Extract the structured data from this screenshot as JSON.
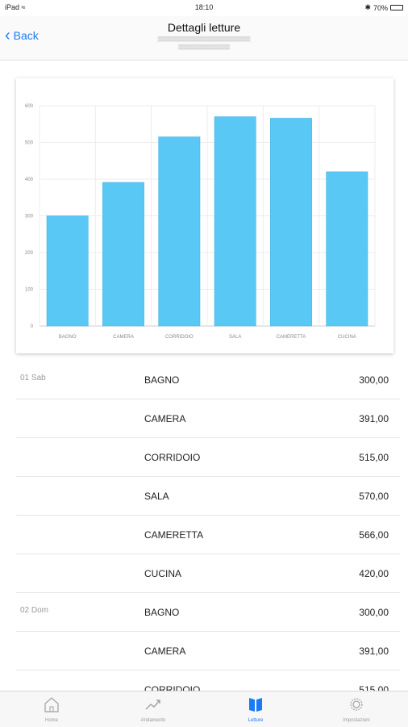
{
  "status_bar": {
    "device": "iPad",
    "time": "18:10",
    "battery": "70%",
    "battery_level": 0.7
  },
  "nav": {
    "back_label": "Back",
    "title": "Dettagli letture"
  },
  "chart_data": {
    "type": "bar",
    "categories": [
      "BAGNO",
      "CAMERA",
      "CORRIDOIO",
      "SALA",
      "CAMERETTA",
      "CUCINA"
    ],
    "values": [
      300,
      391,
      515,
      570,
      566,
      420
    ],
    "ylim": [
      0,
      600
    ],
    "yticks": [
      "0",
      "100",
      "200",
      "300",
      "400",
      "500",
      "600"
    ],
    "grid": true,
    "color": "#5ac8f5"
  },
  "readings": [
    {
      "date": "01 Sab",
      "label": "BAGNO",
      "value": "300,00"
    },
    {
      "date": "",
      "label": "CAMERA",
      "value": "391,00"
    },
    {
      "date": "",
      "label": "CORRIDOIO",
      "value": "515,00"
    },
    {
      "date": "",
      "label": "SALA",
      "value": "570,00"
    },
    {
      "date": "",
      "label": "CAMERETTA",
      "value": "566,00"
    },
    {
      "date": "",
      "label": "CUCINA",
      "value": "420,00"
    },
    {
      "date": "02 Dom",
      "label": "BAGNO",
      "value": "300,00"
    },
    {
      "date": "",
      "label": "CAMERA",
      "value": "391,00"
    },
    {
      "date": "",
      "label": "CORRIDOIO",
      "value": "515,00"
    }
  ],
  "tabs": [
    {
      "label": "Home",
      "icon": "home-icon",
      "active": false
    },
    {
      "label": "Andamento",
      "icon": "trend-icon",
      "active": false
    },
    {
      "label": "Letture",
      "icon": "book-icon",
      "active": true
    },
    {
      "label": "Impostazioni",
      "icon": "gear-icon",
      "active": false
    }
  ],
  "colors": {
    "accent": "#1a7cf5",
    "bar": "#5ac8f5"
  }
}
